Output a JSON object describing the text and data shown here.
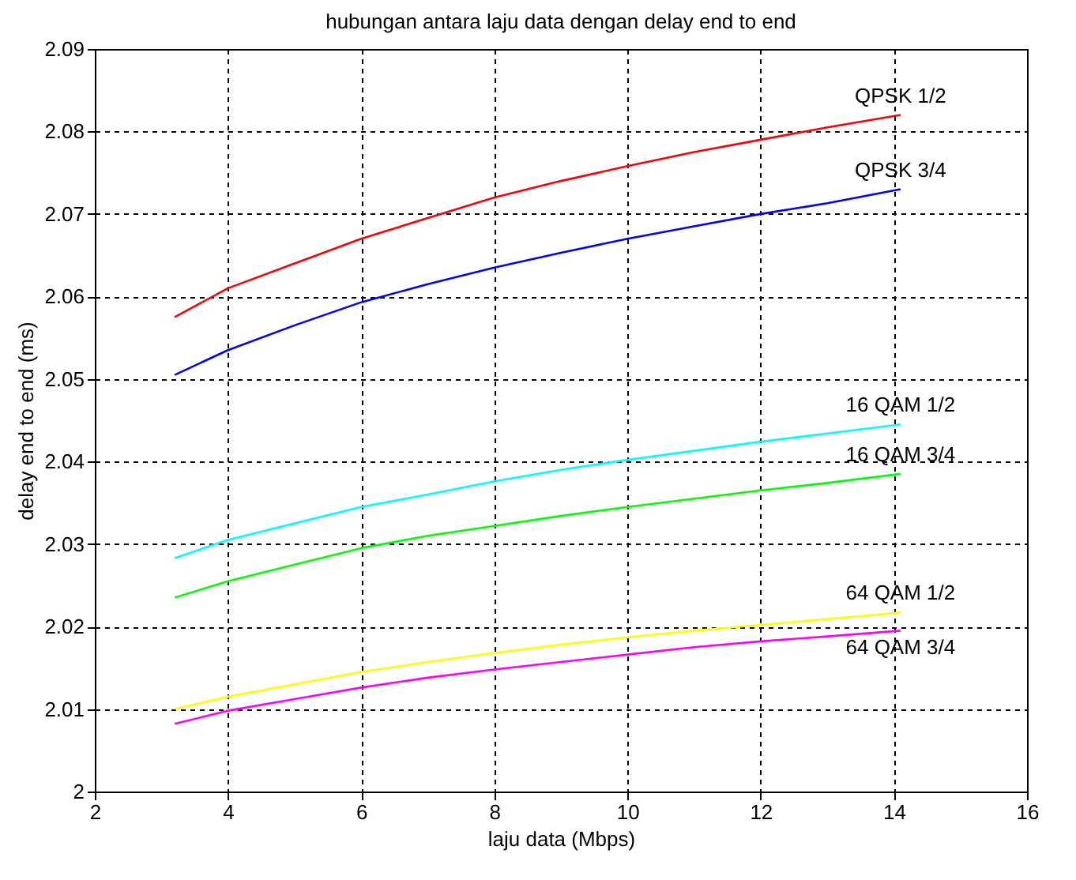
{
  "chart_data": {
    "type": "line",
    "title": "hubungan antara laju data dengan delay end to end",
    "xlabel": "laju data (Mbps)",
    "ylabel": "delay end to end (ms)",
    "x": [
      3.2,
      4,
      5,
      6,
      7,
      8,
      9,
      10,
      11,
      12,
      13,
      14.1
    ],
    "series": [
      {
        "name": "QPSK 1/2",
        "color": "#ff0000",
        "values": [
          2.0575,
          2.061,
          2.064,
          2.067,
          2.0695,
          2.072,
          2.074,
          2.0758,
          2.0775,
          2.079,
          2.0805,
          2.082
        ]
      },
      {
        "name": "QPSK 3/4",
        "color": "#0000ff",
        "values": [
          2.0505,
          2.0535,
          2.0565,
          2.0593,
          2.0615,
          2.0635,
          2.0653,
          2.067,
          2.0685,
          2.07,
          2.0713,
          2.073
        ]
      },
      {
        "name": "16 QAM 1/2",
        "color": "#00ffff",
        "values": [
          2.0283,
          2.0305,
          2.0325,
          2.0345,
          2.036,
          2.0376,
          2.039,
          2.0402,
          2.0413,
          2.0424,
          2.0434,
          2.0445
        ]
      },
      {
        "name": "16 QAM 3/4",
        "color": "#00ff00",
        "values": [
          2.0235,
          2.0255,
          2.0275,
          2.0295,
          2.031,
          2.0322,
          2.0334,
          2.0345,
          2.0355,
          2.0365,
          2.0374,
          2.0385
        ]
      },
      {
        "name": "64 QAM 1/2",
        "color": "#ffff00",
        "values": [
          2.01,
          2.0115,
          2.013,
          2.0145,
          2.0157,
          2.0168,
          2.0178,
          2.0187,
          2.0195,
          2.0202,
          2.0209,
          2.0217
        ]
      },
      {
        "name": "64 QAM 3/4",
        "color": "#ff00ff",
        "values": [
          2.0082,
          2.0098,
          2.0112,
          2.0126,
          2.0138,
          2.0148,
          2.0157,
          2.0166,
          2.0175,
          2.0182,
          2.0188,
          2.0195
        ]
      }
    ],
    "xlim": [
      2,
      16
    ],
    "xticks": [
      2,
      4,
      6,
      8,
      10,
      12,
      14,
      16
    ],
    "ylim": [
      2,
      2.09
    ],
    "yticks": [
      2,
      2.01,
      2.02,
      2.03,
      2.04,
      2.05,
      2.06,
      2.07,
      2.08,
      2.09
    ],
    "grid": true,
    "legend": false,
    "line_style": "solid",
    "marker": "none"
  }
}
